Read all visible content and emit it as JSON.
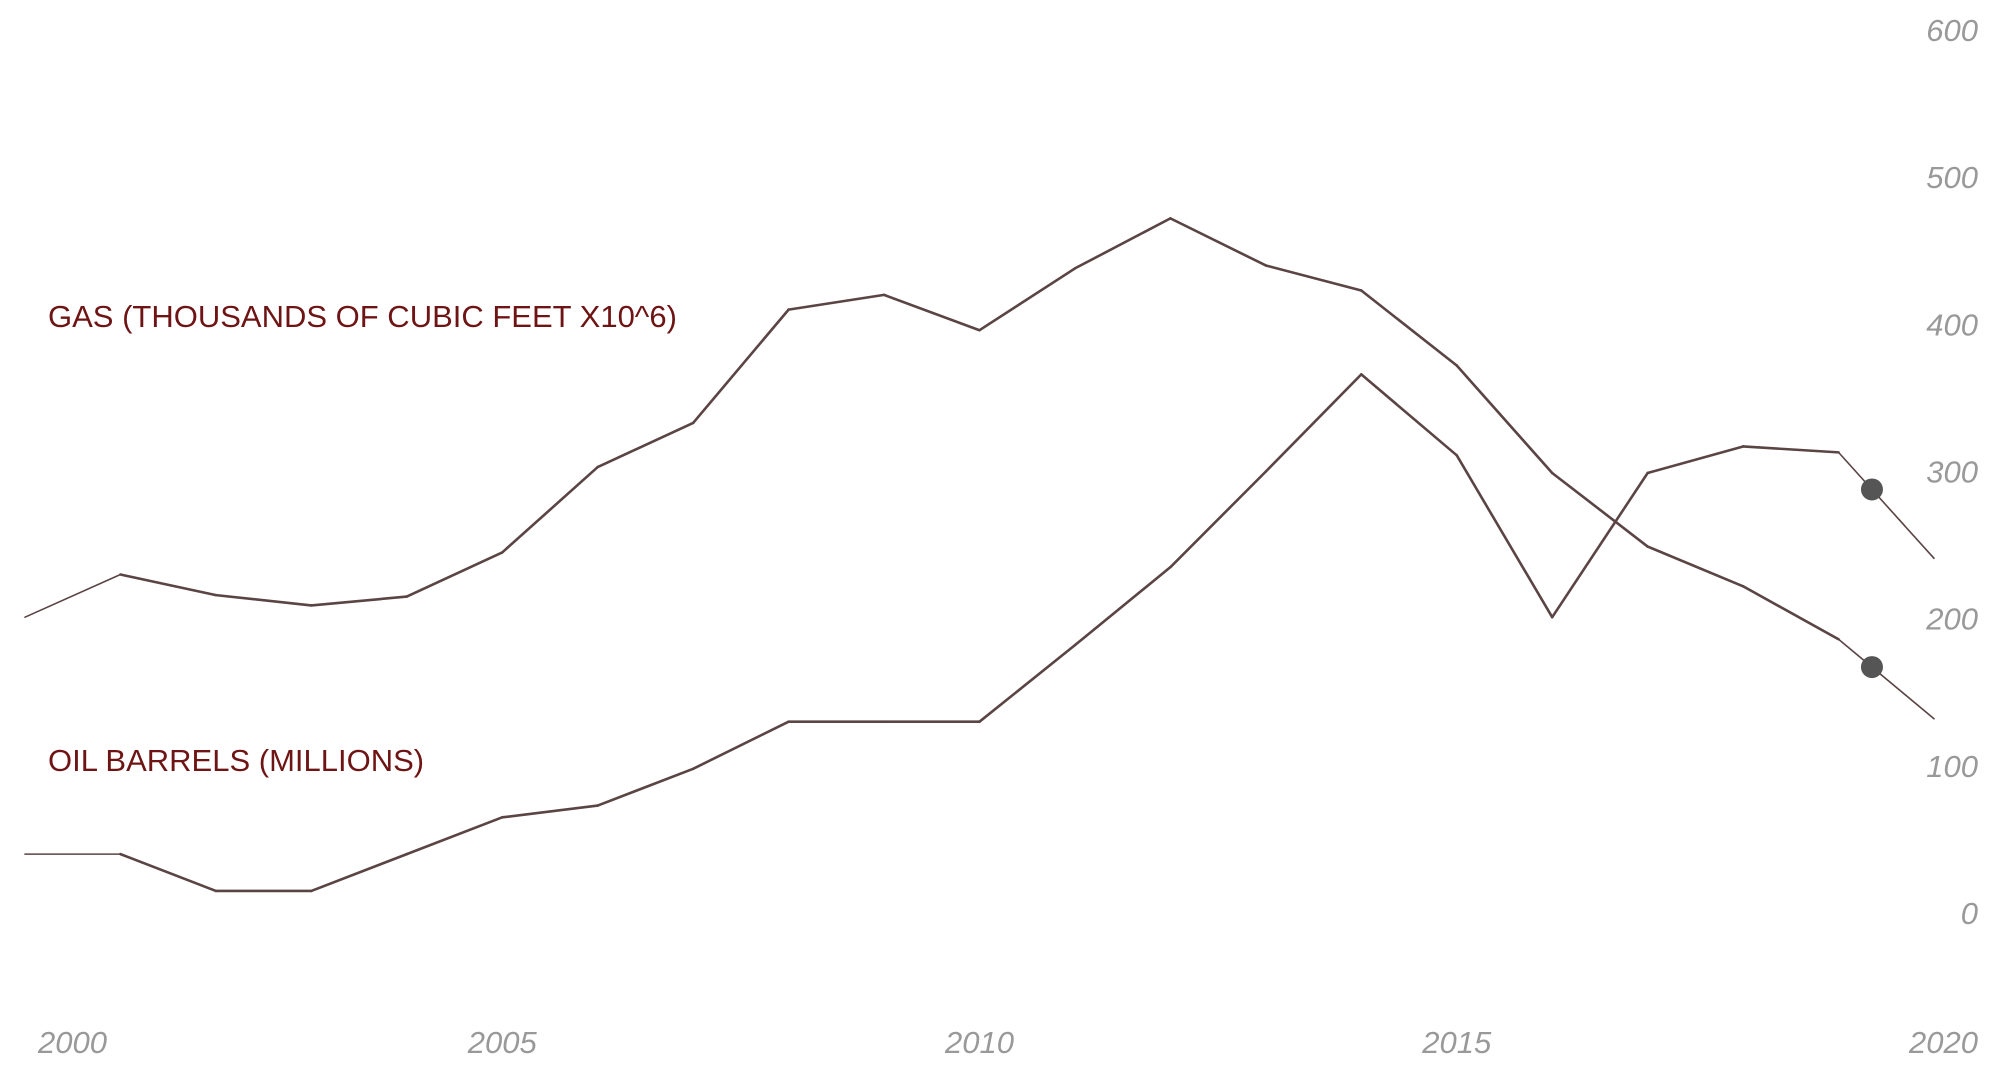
{
  "chart_data": {
    "type": "line",
    "title": "",
    "xlabel": "",
    "ylabel": "",
    "xlim": [
      2000,
      2020
    ],
    "ylim": [
      0,
      600
    ],
    "x_ticks": [
      2000,
      2005,
      2010,
      2015,
      2020
    ],
    "y_ticks": [
      0,
      100,
      200,
      300,
      400,
      500,
      600
    ],
    "grid": false,
    "y_axis_position": "right",
    "line_color": "#5a4444",
    "marker_color": "#555555",
    "label_color": "#6e1414",
    "series": [
      {
        "name": "GAS (THOUSANDS OF CUBIC FEET X10^6)",
        "x": [
          2000,
          2001,
          2002,
          2003,
          2004,
          2005,
          2006,
          2007,
          2008,
          2009,
          2010,
          2011,
          2012,
          2013,
          2014,
          2015,
          2016,
          2017,
          2018,
          2019,
          2020
        ],
        "values": [
          201,
          230,
          216,
          209,
          215,
          245,
          303,
          333,
          410,
          420,
          396,
          438,
          472,
          440,
          423,
          372,
          299,
          249,
          222,
          186,
          132
        ]
      },
      {
        "name": "OIL BARRELS (MILLIONS)",
        "x": [
          2000,
          2001,
          2002,
          2003,
          2004,
          2005,
          2006,
          2007,
          2008,
          2009,
          2010,
          2011,
          2012,
          2013,
          2014,
          2015,
          2016,
          2017,
          2018,
          2019,
          2020
        ],
        "values": [
          40,
          40,
          15,
          15,
          40,
          65,
          73,
          98,
          130,
          130,
          130,
          182,
          235,
          300,
          366,
          311,
          201,
          299,
          317,
          313,
          241
        ]
      }
    ]
  }
}
